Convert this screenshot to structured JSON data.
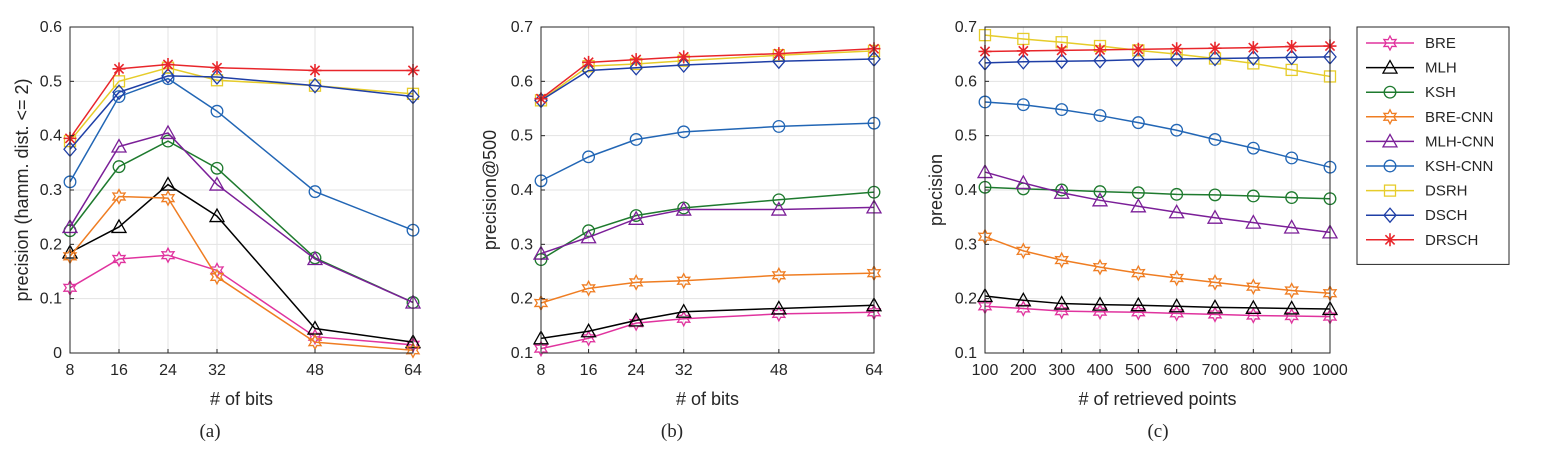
{
  "chart_data": [
    {
      "type": "line",
      "caption": "(a)",
      "xlabel": "# of bits",
      "ylabel": "precision (hamm. dist. <= 2)",
      "xlim": [
        8,
        64
      ],
      "ylim": [
        0,
        0.6
      ],
      "xticks": [
        8,
        16,
        24,
        32,
        48,
        64
      ],
      "xtick_labels": [
        "8",
        "16",
        "24",
        "32",
        "48",
        "64"
      ],
      "yticks": [
        0,
        0.1,
        0.2,
        0.3,
        0.4,
        0.5,
        0.6
      ],
      "ytick_labels": [
        "0",
        "0.1",
        "0.2",
        "0.3",
        "0.4",
        "0.5",
        "0.6"
      ],
      "grid": true,
      "x": [
        8,
        16,
        24,
        32,
        48,
        64
      ],
      "series": [
        {
          "name": "BRE",
          "values": [
            0.12,
            0.173,
            0.18,
            0.152,
            0.03,
            0.015
          ]
        },
        {
          "name": "MLH",
          "values": [
            0.185,
            0.232,
            0.31,
            0.252,
            0.045,
            0.02
          ]
        },
        {
          "name": "KSH",
          "values": [
            0.225,
            0.343,
            0.39,
            0.34,
            0.175,
            0.093
          ]
        },
        {
          "name": "BRE-CNN",
          "values": [
            0.178,
            0.288,
            0.285,
            0.14,
            0.02,
            0.005
          ]
        },
        {
          "name": "MLH-CNN",
          "values": [
            0.232,
            0.38,
            0.405,
            0.31,
            0.173,
            0.093
          ]
        },
        {
          "name": "KSH-CNN",
          "values": [
            0.315,
            0.472,
            0.505,
            0.445,
            0.297,
            0.226
          ]
        },
        {
          "name": "DSRH",
          "values": [
            0.39,
            0.5,
            0.525,
            0.502,
            0.492,
            0.477
          ]
        },
        {
          "name": "DSCH",
          "values": [
            0.375,
            0.48,
            0.51,
            0.508,
            0.492,
            0.472
          ]
        },
        {
          "name": "DRSCH",
          "values": [
            0.395,
            0.523,
            0.531,
            0.525,
            0.52,
            0.52
          ]
        }
      ]
    },
    {
      "type": "line",
      "caption": "(b)",
      "xlabel": "# of bits",
      "ylabel": "precision@500",
      "xlim": [
        8,
        64
      ],
      "ylim": [
        0.1,
        0.7
      ],
      "xticks": [
        8,
        16,
        24,
        32,
        48,
        64
      ],
      "xtick_labels": [
        "8",
        "16",
        "24",
        "32",
        "48",
        "64"
      ],
      "yticks": [
        0.1,
        0.2,
        0.3,
        0.4,
        0.5,
        0.6,
        0.7
      ],
      "ytick_labels": [
        "0.1",
        "0.2",
        "0.3",
        "0.4",
        "0.5",
        "0.6",
        "0.7"
      ],
      "grid": true,
      "x": [
        8,
        16,
        24,
        32,
        48,
        64
      ],
      "series": [
        {
          "name": "BRE",
          "values": [
            0.108,
            0.127,
            0.155,
            0.163,
            0.172,
            0.175
          ]
        },
        {
          "name": "MLH",
          "values": [
            0.127,
            0.14,
            0.16,
            0.176,
            0.182,
            0.188
          ]
        },
        {
          "name": "KSH",
          "values": [
            0.272,
            0.325,
            0.353,
            0.367,
            0.382,
            0.396
          ]
        },
        {
          "name": "BRE-CNN",
          "values": [
            0.192,
            0.219,
            0.23,
            0.233,
            0.243,
            0.247
          ]
        },
        {
          "name": "MLH-CNN",
          "values": [
            0.283,
            0.313,
            0.347,
            0.364,
            0.364,
            0.368
          ]
        },
        {
          "name": "KSH-CNN",
          "values": [
            0.417,
            0.461,
            0.493,
            0.507,
            0.517,
            0.523
          ]
        },
        {
          "name": "DSRH",
          "values": [
            0.565,
            0.628,
            0.632,
            0.638,
            0.648,
            0.656
          ]
        },
        {
          "name": "DSCH",
          "values": [
            0.565,
            0.62,
            0.625,
            0.63,
            0.637,
            0.641
          ]
        },
        {
          "name": "DRSCH",
          "values": [
            0.568,
            0.635,
            0.64,
            0.645,
            0.651,
            0.66
          ]
        }
      ]
    },
    {
      "type": "line",
      "caption": "(c)",
      "xlabel": "# of retrieved points",
      "ylabel": "precision",
      "xlim": [
        100,
        1000
      ],
      "ylim": [
        0.1,
        0.7
      ],
      "xticks": [
        100,
        200,
        300,
        400,
        500,
        600,
        700,
        800,
        900,
        1000
      ],
      "xtick_labels": [
        "100",
        "200",
        "300",
        "400",
        "500",
        "600",
        "700",
        "800",
        "900",
        "1000"
      ],
      "yticks": [
        0.1,
        0.2,
        0.3,
        0.4,
        0.5,
        0.6,
        0.7
      ],
      "ytick_labels": [
        "0.1",
        "0.2",
        "0.3",
        "0.4",
        "0.5",
        "0.6",
        "0.7"
      ],
      "grid": true,
      "x": [
        100,
        200,
        300,
        400,
        500,
        600,
        700,
        800,
        900,
        1000
      ],
      "series": [
        {
          "name": "BRE",
          "values": [
            0.186,
            0.182,
            0.177,
            0.176,
            0.175,
            0.173,
            0.171,
            0.169,
            0.168,
            0.167
          ]
        },
        {
          "name": "MLH",
          "values": [
            0.205,
            0.197,
            0.191,
            0.189,
            0.188,
            0.186,
            0.184,
            0.183,
            0.182,
            0.181
          ]
        },
        {
          "name": "KSH",
          "values": [
            0.405,
            0.402,
            0.4,
            0.397,
            0.395,
            0.392,
            0.391,
            0.389,
            0.386,
            0.384
          ]
        },
        {
          "name": "BRE-CNN",
          "values": [
            0.314,
            0.288,
            0.271,
            0.258,
            0.247,
            0.238,
            0.23,
            0.222,
            0.215,
            0.21
          ]
        },
        {
          "name": "MLH-CNN",
          "values": [
            0.433,
            0.413,
            0.395,
            0.381,
            0.37,
            0.359,
            0.349,
            0.34,
            0.331,
            0.322
          ]
        },
        {
          "name": "KSH-CNN",
          "values": [
            0.562,
            0.557,
            0.548,
            0.537,
            0.524,
            0.51,
            0.493,
            0.477,
            0.459,
            0.442
          ]
        },
        {
          "name": "DSRH",
          "values": [
            0.685,
            0.678,
            0.672,
            0.665,
            0.657,
            0.65,
            0.642,
            0.633,
            0.621,
            0.609
          ]
        },
        {
          "name": "DSCH",
          "values": [
            0.634,
            0.636,
            0.637,
            0.638,
            0.64,
            0.641,
            0.642,
            0.643,
            0.644,
            0.645
          ]
        },
        {
          "name": "DRSCH",
          "values": [
            0.655,
            0.656,
            0.657,
            0.658,
            0.659,
            0.66,
            0.661,
            0.662,
            0.664,
            0.665
          ]
        }
      ]
    }
  ],
  "legend": {
    "placement": "right",
    "entries": [
      {
        "name": "BRE",
        "color": "#e0339e",
        "marker": "star6"
      },
      {
        "name": "MLH",
        "color": "#000000",
        "marker": "triangle"
      },
      {
        "name": "KSH",
        "color": "#1e7a2e",
        "marker": "circle"
      },
      {
        "name": "BRE-CNN",
        "color": "#ef7d22",
        "marker": "star6"
      },
      {
        "name": "MLH-CNN",
        "color": "#7b1f98",
        "marker": "triangle"
      },
      {
        "name": "KSH-CNN",
        "color": "#2266b5",
        "marker": "circle"
      },
      {
        "name": "DSRH",
        "color": "#e6cc2a",
        "marker": "square"
      },
      {
        "name": "DSCH",
        "color": "#1f3fa6",
        "marker": "diamond"
      },
      {
        "name": "DRSCH",
        "color": "#e8262b",
        "marker": "asterisk"
      }
    ]
  }
}
